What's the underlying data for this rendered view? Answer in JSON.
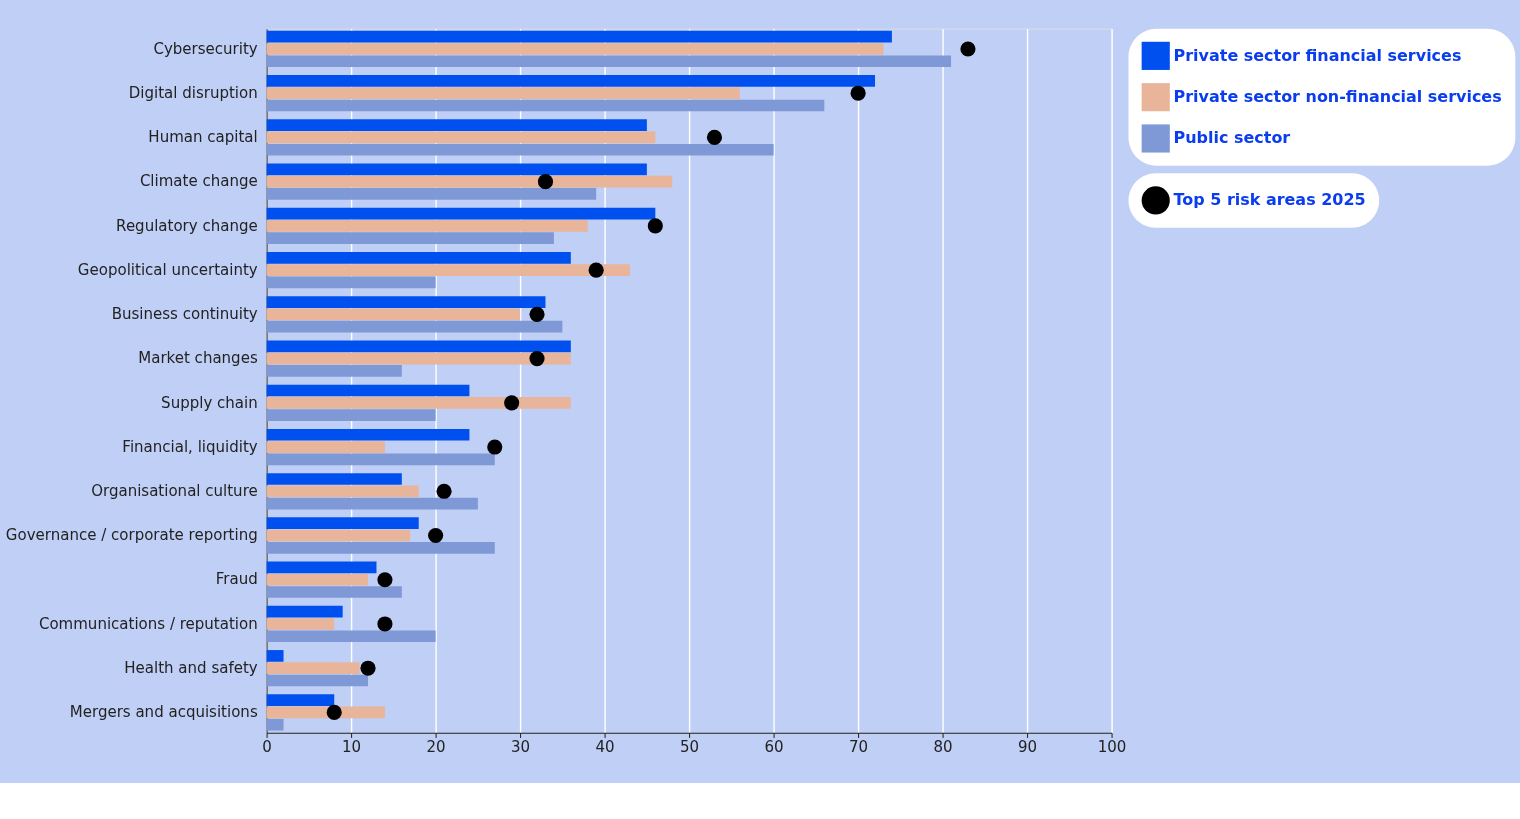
{
  "chart_data": {
    "type": "bar",
    "orientation": "horizontal",
    "categories": [
      "Cybersecurity",
      "Digital disruption",
      "Human capital",
      "Climate change",
      "Regulatory change",
      "Geopolitical uncertainty",
      "Business continuity",
      "Market changes",
      "Supply chain",
      "Financial, liquidity",
      "Organisational culture",
      "Governance / corporate reporting",
      "Fraud",
      "Communications / reputation",
      "Health and safety",
      "Mergers and acquisitions"
    ],
    "series": [
      {
        "name": "Private sector financial services",
        "color": "#0050f0",
        "values": [
          74,
          72,
          45,
          45,
          46,
          36,
          33,
          36,
          24,
          24,
          16,
          18,
          13,
          9,
          2,
          8
        ]
      },
      {
        "name": "Private sector non-financial services",
        "color": "#e8b49a",
        "values": [
          73,
          56,
          46,
          48,
          38,
          43,
          30,
          36,
          36,
          14,
          18,
          17,
          12,
          8,
          11,
          14
        ]
      },
      {
        "name": "Public sector",
        "color": "#7f98d6",
        "values": [
          81,
          66,
          60,
          39,
          34,
          20,
          35,
          16,
          20,
          27,
          25,
          27,
          16,
          20,
          12,
          2
        ]
      },
      {
        "name": "Top 5 risk areas 2025",
        "color": "#000000",
        "type": "scatter",
        "marker": "circle",
        "values": [
          83,
          70,
          53,
          33,
          46,
          39,
          32,
          32,
          29,
          27,
          21,
          20,
          14,
          14,
          12,
          8
        ]
      }
    ],
    "xlim": [
      0,
      100
    ],
    "xticks": [
      0,
      10,
      20,
      30,
      40,
      50,
      60,
      70,
      80,
      90,
      100
    ],
    "grid": "x",
    "legend": "right"
  }
}
